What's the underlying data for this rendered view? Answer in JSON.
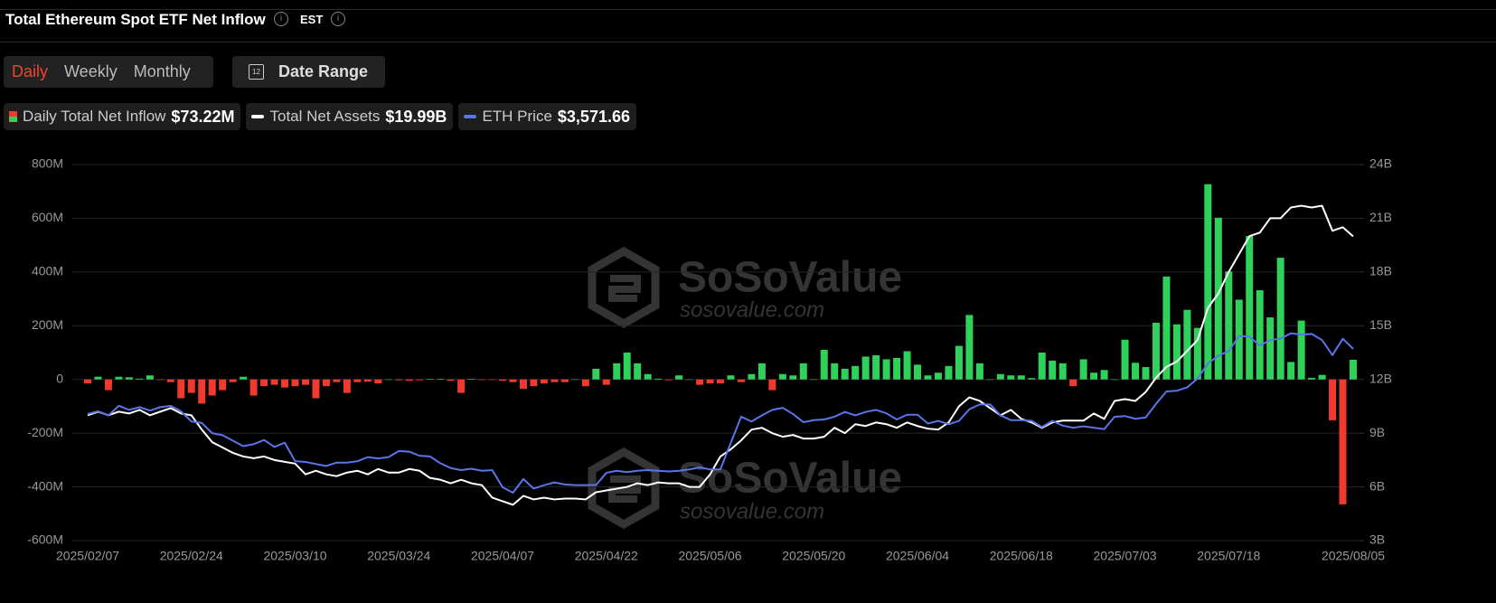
{
  "header": {
    "title": "Total Ethereum Spot ETF Net Inflow",
    "timezone": "EST"
  },
  "controls": {
    "periods": [
      "Daily",
      "Weekly",
      "Monthly"
    ],
    "active_period": 0,
    "calendar_day": "12",
    "date_range": "Date Range"
  },
  "watermark": {
    "brand": "SoSoValue",
    "url": "sosovalue.com"
  },
  "chart_data": {
    "type": "bar",
    "categories": [
      "2025/02/07",
      null,
      null,
      null,
      null,
      null,
      null,
      null,
      null,
      null,
      "2025/02/24",
      null,
      null,
      null,
      null,
      null,
      null,
      null,
      null,
      null,
      "2025/03/10",
      null,
      null,
      null,
      null,
      null,
      null,
      null,
      null,
      null,
      "2025/03/24",
      null,
      null,
      null,
      null,
      null,
      null,
      null,
      null,
      null,
      "2025/04/07",
      null,
      null,
      null,
      null,
      null,
      null,
      null,
      null,
      null,
      "2025/04/22",
      null,
      null,
      null,
      null,
      null,
      null,
      null,
      null,
      null,
      "2025/05/06",
      null,
      null,
      null,
      null,
      null,
      null,
      null,
      null,
      null,
      "2025/05/20",
      null,
      null,
      null,
      null,
      null,
      null,
      null,
      null,
      null,
      "2025/06/04",
      null,
      null,
      null,
      null,
      null,
      null,
      null,
      null,
      null,
      "2025/06/18",
      null,
      null,
      null,
      null,
      null,
      null,
      null,
      null,
      null,
      "2025/07/03",
      null,
      null,
      null,
      null,
      null,
      null,
      null,
      null,
      null,
      "2025/07/18",
      null,
      null,
      null,
      null,
      null,
      null,
      null,
      null,
      null,
      null,
      null,
      "2025/08/05"
    ],
    "series": [
      {
        "name": "Daily Total Net Inflow",
        "legend_value": "$73.22M",
        "axis": "y",
        "color": "#2fd15a",
        "negative_color": "#f03a2e",
        "values": [
          -15,
          10,
          -40,
          10,
          8,
          3,
          15,
          -2,
          -10,
          -70,
          -50,
          -90,
          -60,
          -40,
          -10,
          10,
          -60,
          -25,
          -20,
          -30,
          -25,
          -20,
          -70,
          -25,
          -10,
          -50,
          -10,
          -8,
          -15,
          0,
          -3,
          -5,
          -3,
          2,
          2,
          -5,
          -50,
          2,
          -2,
          -2,
          -5,
          -10,
          -35,
          -25,
          -15,
          -10,
          -10,
          0,
          -25,
          40,
          -20,
          60,
          100,
          60,
          20,
          3,
          -3,
          15,
          0,
          -20,
          -15,
          -15,
          15,
          -10,
          20,
          60,
          -40,
          20,
          15,
          60,
          0,
          110,
          60,
          40,
          50,
          85,
          90,
          75,
          80,
          105,
          55,
          15,
          25,
          50,
          125,
          240,
          60,
          0,
          20,
          15,
          15,
          5,
          100,
          70,
          60,
          -25,
          75,
          25,
          35,
          0,
          148,
          62,
          46,
          211,
          383,
          205,
          259,
          192,
          727,
          602,
          402,
          297,
          534,
          332,
          231,
          453,
          65,
          219,
          6,
          17,
          -152,
          -465,
          73.22
        ]
      },
      {
        "name": "Total Net Assets",
        "legend_value": "$19.99B",
        "axis": "y2",
        "color": "#ffffff",
        "values": [
          10.0,
          10.2,
          10.0,
          10.2,
          10.1,
          10.3,
          10.0,
          10.2,
          10.4,
          10.1,
          10.0,
          9.2,
          8.5,
          8.2,
          7.9,
          7.7,
          7.6,
          7.7,
          7.5,
          7.4,
          7.3,
          6.7,
          6.9,
          6.7,
          6.6,
          6.8,
          6.9,
          6.7,
          7.0,
          6.8,
          6.8,
          7.0,
          6.9,
          6.5,
          6.4,
          6.2,
          6.4,
          6.2,
          6.1,
          5.4,
          5.2,
          5.0,
          5.5,
          5.3,
          5.4,
          5.3,
          5.35,
          5.35,
          5.3,
          5.7,
          5.8,
          5.9,
          6.0,
          6.2,
          6.1,
          6.25,
          6.2,
          6.2,
          6.0,
          6.0,
          6.7,
          7.7,
          8.1,
          8.6,
          9.2,
          9.3,
          9.0,
          8.8,
          8.9,
          8.7,
          8.7,
          8.8,
          9.3,
          9.0,
          9.5,
          9.4,
          9.6,
          9.5,
          9.3,
          9.6,
          9.4,
          9.25,
          9.2,
          9.6,
          10.5,
          11.0,
          10.8,
          10.4,
          10.0,
          10.3,
          9.8,
          9.6,
          9.3,
          9.6,
          9.7,
          9.7,
          9.7,
          10.1,
          9.8,
          10.8,
          10.9,
          10.8,
          11.3,
          12.1,
          12.7,
          13.0,
          13.6,
          14.2,
          16.0,
          16.8,
          18.0,
          19.0,
          20.0,
          20.2,
          21.0,
          21.0,
          21.6,
          21.7,
          21.6,
          21.7,
          20.3,
          20.5,
          19.99
        ]
      },
      {
        "name": "ETH Price",
        "legend_value": "$3,571.66",
        "axis": "y3",
        "color": "#5b74e8",
        "values": [
          2620,
          2660,
          2600,
          2740,
          2680,
          2720,
          2670,
          2720,
          2740,
          2660,
          2510,
          2490,
          2340,
          2310,
          2230,
          2150,
          2180,
          2240,
          2140,
          2200,
          1930,
          1920,
          1890,
          1860,
          1910,
          1910,
          1930,
          1990,
          1970,
          1990,
          2080,
          2070,
          2010,
          2000,
          1900,
          1830,
          1800,
          1820,
          1790,
          1800,
          1550,
          1470,
          1670,
          1530,
          1580,
          1620,
          1590,
          1580,
          1580,
          1580,
          1760,
          1790,
          1770,
          1790,
          1800,
          1790,
          1780,
          1790,
          1810,
          1840,
          1810,
          1810,
          2200,
          2580,
          2510,
          2600,
          2680,
          2710,
          2620,
          2500,
          2530,
          2540,
          2580,
          2650,
          2600,
          2650,
          2680,
          2630,
          2540,
          2610,
          2610,
          2480,
          2520,
          2470,
          2520,
          2690,
          2760,
          2760,
          2600,
          2530,
          2530,
          2520,
          2430,
          2520,
          2450,
          2420,
          2440,
          2420,
          2400,
          2580,
          2590,
          2550,
          2570,
          2770,
          2950,
          2960,
          3010,
          3140,
          3360,
          3470,
          3540,
          3760,
          3750,
          3620,
          3700,
          3720,
          3800,
          3780,
          3790,
          3700,
          3480,
          3720,
          3571.66
        ]
      }
    ],
    "ylim": [
      -600,
      800
    ],
    "yticks": [
      {
        "value": -600,
        "label": "-600M"
      },
      {
        "value": -400,
        "label": "-400M"
      },
      {
        "value": -200,
        "label": "-200M"
      },
      0,
      {
        "value": 200,
        "label": "200M"
      },
      {
        "value": 400,
        "label": "400M"
      },
      {
        "value": 600,
        "label": "600M"
      },
      {
        "value": 800,
        "label": "800M"
      }
    ],
    "y2lim": [
      3,
      24
    ],
    "y2ticks": [
      {
        "value": 3,
        "label": "3B"
      },
      {
        "value": 6,
        "label": "6B"
      },
      {
        "value": 9,
        "label": "9B"
      },
      {
        "value": 12,
        "label": "12B"
      },
      {
        "value": 15,
        "label": "15B"
      },
      {
        "value": 18,
        "label": "18B"
      },
      {
        "value": 21,
        "label": "21B"
      },
      {
        "value": 24,
        "label": "24B"
      }
    ],
    "y3lim": [
      770,
      6265
    ],
    "grid": true
  }
}
